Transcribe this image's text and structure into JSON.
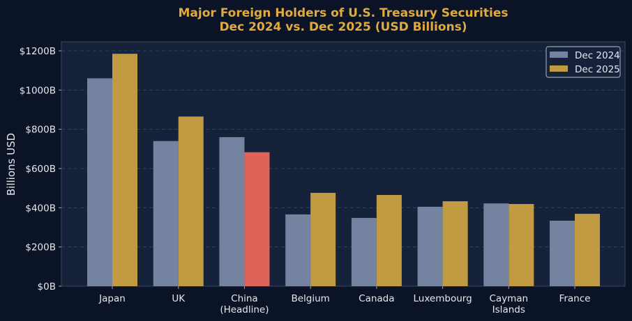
{
  "chart_data": {
    "type": "bar",
    "title": "Major Foreign Holders of U.S. Treasury Securities",
    "subtitle": "Dec 2024 vs. Dec 2025 (USD Billions)",
    "xlabel": "",
    "ylabel": "Billions USD",
    "ylim": [
      0,
      1250
    ],
    "yticks": [
      0,
      200,
      400,
      600,
      800,
      1000,
      1200
    ],
    "ytick_labels": [
      "$0B",
      "$200B",
      "$400B",
      "$600B",
      "$800B",
      "$1000B",
      "$1200B"
    ],
    "categories": [
      "Japan",
      "UK",
      "China\n(Headline)",
      "Belgium",
      "Canada",
      "Luxembourg",
      "Cayman\nIslands",
      "France"
    ],
    "series": [
      {
        "name": "Dec 2024",
        "color": "#7383a0",
        "values": [
          1060,
          740,
          760,
          366,
          348,
          405,
          422,
          334
        ]
      },
      {
        "name": "Dec 2025",
        "color": "#c19b42",
        "values": [
          1185,
          865,
          683,
          476,
          465,
          433,
          419,
          369
        ],
        "highlight": {
          "index": 2,
          "color": "#e0635a"
        }
      }
    ],
    "grid": true,
    "legend_position": "top-right",
    "colors": {
      "background": "#0b1426",
      "plot_background": "#16223a",
      "title": "#e0aa3e",
      "text": "#e6e8ee"
    }
  }
}
